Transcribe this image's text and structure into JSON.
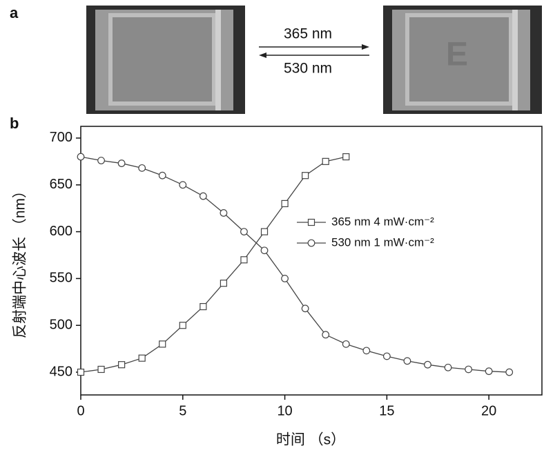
{
  "panel_a": {
    "label": "a",
    "arrow_top": "365 nm",
    "arrow_bottom": "530 nm",
    "image_text": "E"
  },
  "panel_b": {
    "label": "b"
  },
  "chart_data": {
    "type": "line",
    "xlabel": "时间 （s）",
    "ylabel": "反射端中心波长 （nm）",
    "xlim": [
      0,
      22.6
    ],
    "ylim": [
      425.7,
      712.5
    ],
    "xticks": [
      0,
      5,
      10,
      15,
      20
    ],
    "yticks": [
      450,
      500,
      550,
      600,
      650,
      700
    ],
    "series": [
      {
        "name": "365 nm  4 mW·cm⁻²",
        "color": "#444",
        "marker": "square",
        "x": [
          0,
          1,
          2,
          3,
          4,
          5,
          6,
          7,
          8,
          9,
          10,
          11,
          12,
          13
        ],
        "values": [
          450,
          453,
          458,
          465,
          480,
          500,
          520,
          545,
          570,
          600,
          630,
          660,
          675,
          680
        ]
      },
      {
        "name": "530 nm  1 mW·cm⁻²",
        "color": "#444",
        "marker": "circle",
        "x": [
          0,
          1,
          2,
          3,
          4,
          5,
          6,
          7,
          8,
          9,
          10,
          11,
          12,
          13,
          14,
          15,
          16,
          17,
          18,
          19,
          20,
          21
        ],
        "values": [
          680,
          676,
          673,
          668,
          660,
          650,
          638,
          620,
          600,
          580,
          550,
          518,
          490,
          480,
          473,
          467,
          462,
          458,
          455,
          453,
          451,
          450
        ]
      }
    ]
  }
}
